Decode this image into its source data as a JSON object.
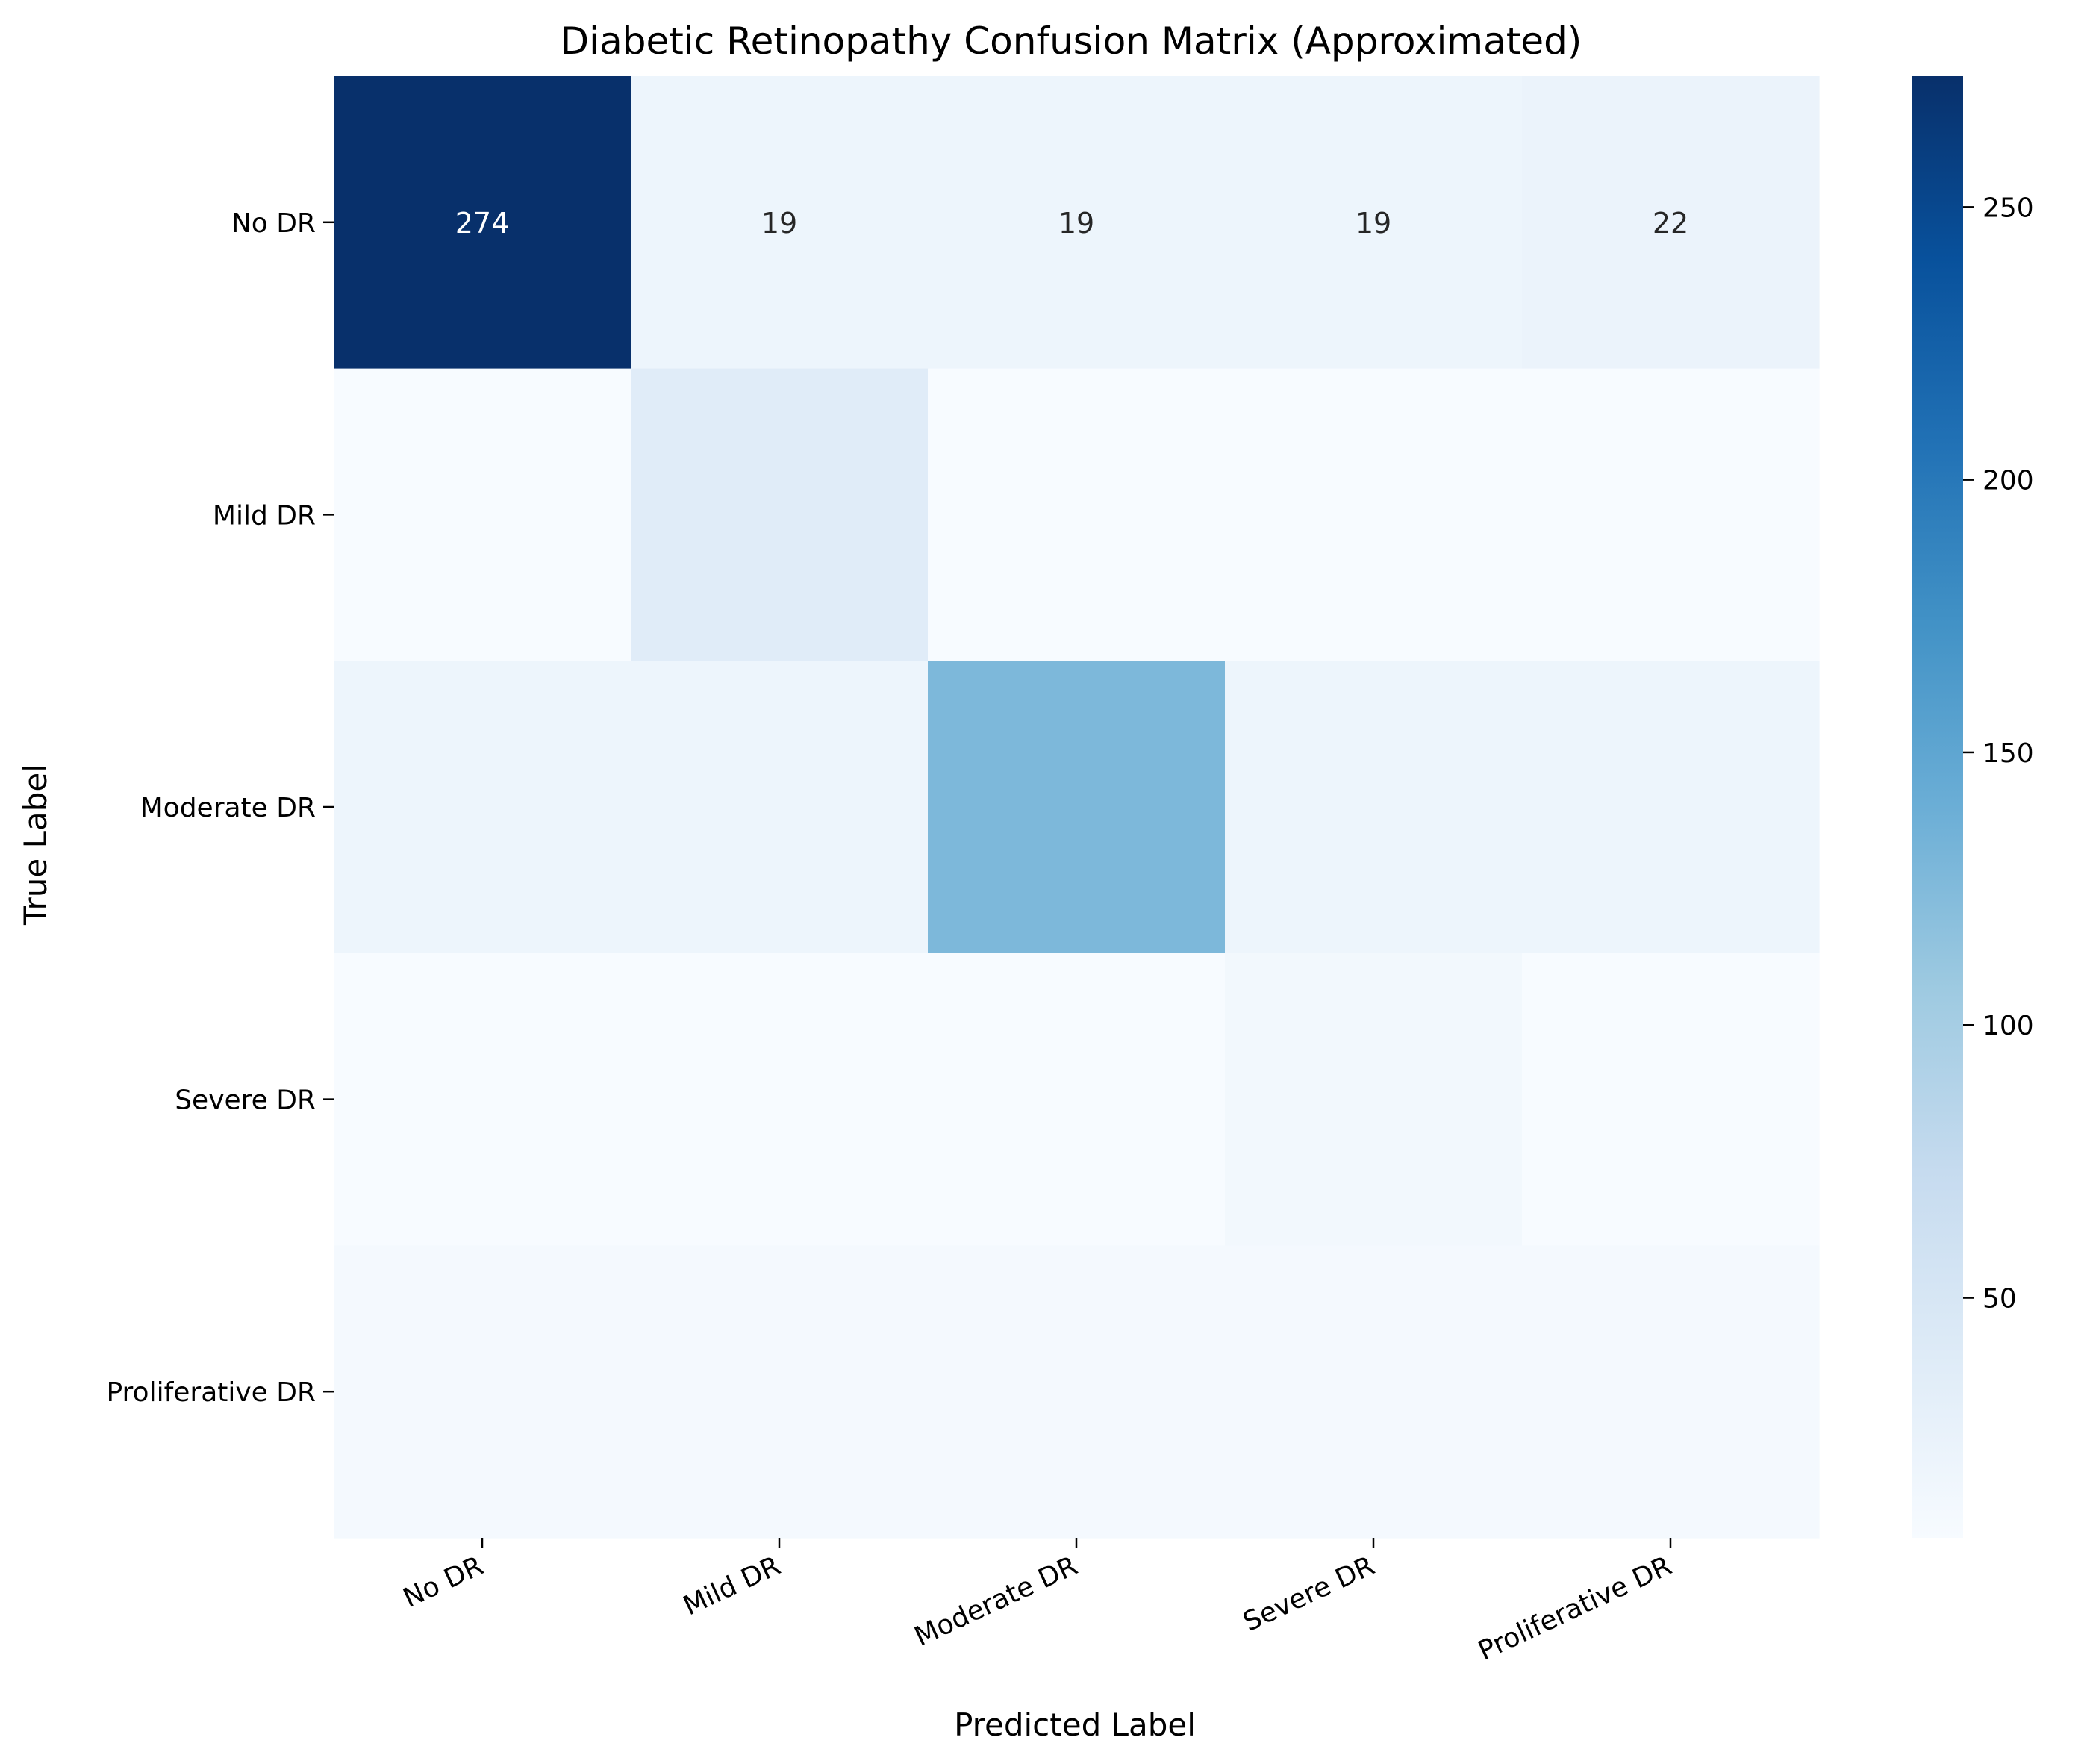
{
  "chart_data": {
    "type": "heatmap",
    "title": "Diabetic Retinopathy Confusion Matrix (Approximated)",
    "xlabel": "Predicted Label",
    "ylabel": "True Label",
    "x_categories": [
      "No DR",
      "Mild DR",
      "Moderate DR",
      "Severe DR",
      "Proliferative DR"
    ],
    "y_categories": [
      "No DR",
      "Mild DR",
      "Moderate DR",
      "Severe DR",
      "Proliferative DR"
    ],
    "values": [
      [
        274,
        19,
        19,
        19,
        22
      ],
      [
        6,
        37,
        6,
        6,
        6
      ],
      [
        19,
        19,
        128,
        19,
        19
      ],
      [
        6,
        6,
        6,
        13,
        6
      ],
      [
        10,
        10,
        10,
        10,
        10
      ]
    ],
    "annotations": [
      [
        "274",
        "19",
        "19",
        "19",
        "22"
      ],
      [
        "",
        "",
        "",
        "",
        ""
      ],
      [
        "",
        "",
        "",
        "",
        ""
      ],
      [
        "",
        "",
        "",
        "",
        ""
      ],
      [
        "",
        "",
        "",
        "",
        ""
      ]
    ],
    "colormap": "Blues",
    "colorbar": {
      "range": [
        6,
        274
      ],
      "ticks": [
        50,
        100,
        150,
        200,
        250
      ]
    },
    "grid": false,
    "legend": "colorbar-right"
  }
}
